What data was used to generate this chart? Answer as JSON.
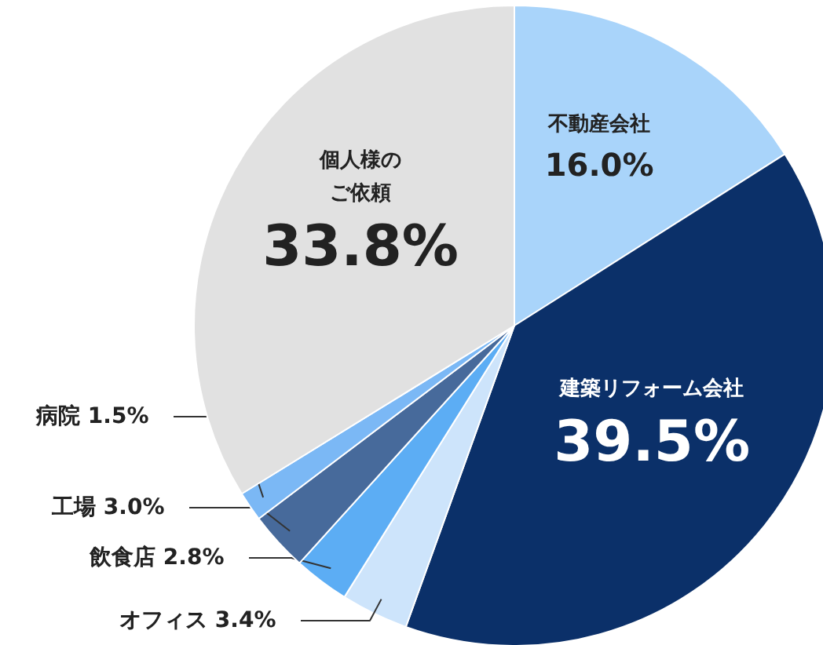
{
  "chart_data": {
    "type": "pie",
    "categories": [
      "不動産会社",
      "建築リフォーム会社",
      "オフィス",
      "飲食店",
      "工場",
      "病院",
      "個人様のご依頼"
    ],
    "values": [
      16.0,
      39.5,
      3.4,
      2.8,
      3.0,
      1.5,
      33.8
    ],
    "value_labels": [
      "16.0%",
      "39.5%",
      "3.4%",
      "2.8%",
      "3.0%",
      "1.5%",
      "33.8%"
    ],
    "colors": [
      "#a9d4fa",
      "#0b3069",
      "#cde4fb",
      "#5cadf4",
      "#476a9b",
      "#7bb8f5",
      "#e1e1e1"
    ]
  }
}
